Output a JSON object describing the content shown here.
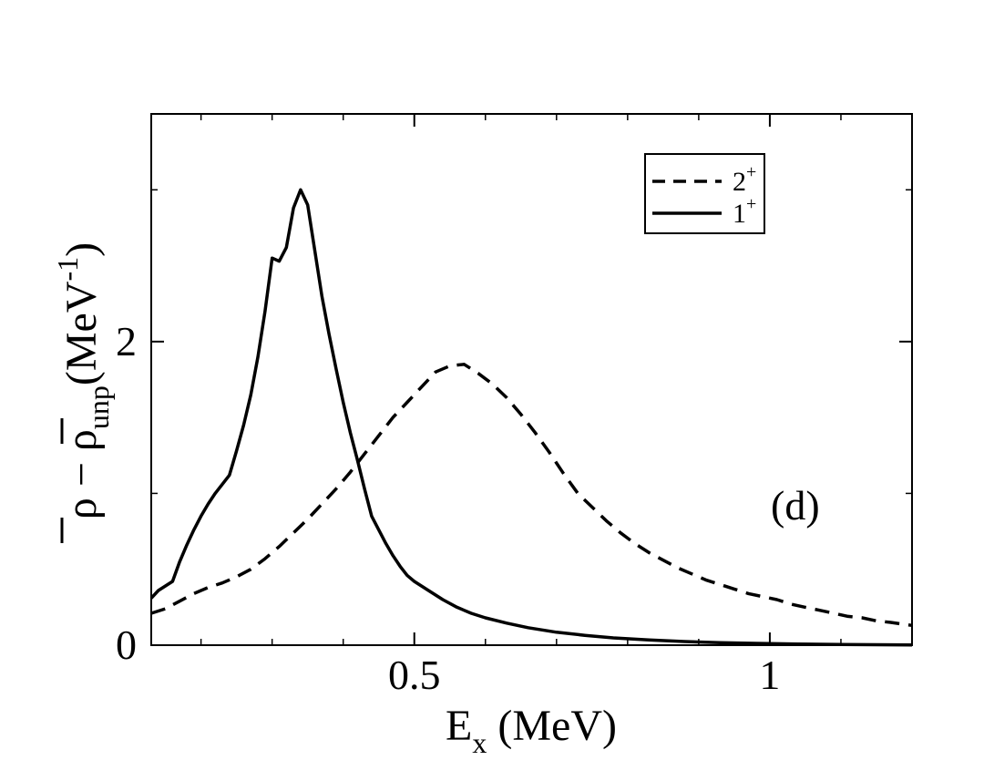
{
  "chart_data": {
    "type": "line",
    "title": "",
    "xlabel": {
      "base": "E",
      "sub": "x",
      "rest": " (MeV)"
    },
    "ylabel": {
      "part1": "ρ − ρ",
      "sub": "unp",
      "part2": "(MeV",
      "sup": "-1",
      "part3": ")"
    },
    "xlim": [
      0.13,
      1.2
    ],
    "ylim": [
      0,
      3.5
    ],
    "xticks": [
      {
        "v": 0.5,
        "label": "0.5"
      },
      {
        "v": 1.0,
        "label": "1"
      }
    ],
    "yticks": [
      {
        "v": 0,
        "label": "0"
      },
      {
        "v": 2,
        "label": "2"
      }
    ],
    "x_minor_ticks": [
      0.2,
      0.3,
      0.4,
      0.6,
      0.7,
      0.8,
      0.9,
      1.1
    ],
    "y_minor_ticks": [
      1,
      3
    ],
    "legend_position": "top-right",
    "annotation": "(d)",
    "series": [
      {
        "name": "2",
        "name_sup": "+",
        "style": "dashed",
        "color": "#000000",
        "points": [
          [
            0.13,
            0.21
          ],
          [
            0.15,
            0.24
          ],
          [
            0.17,
            0.29
          ],
          [
            0.19,
            0.34
          ],
          [
            0.21,
            0.38
          ],
          [
            0.23,
            0.41
          ],
          [
            0.25,
            0.45
          ],
          [
            0.27,
            0.5
          ],
          [
            0.29,
            0.57
          ],
          [
            0.31,
            0.65
          ],
          [
            0.33,
            0.74
          ],
          [
            0.35,
            0.83
          ],
          [
            0.37,
            0.93
          ],
          [
            0.39,
            1.03
          ],
          [
            0.41,
            1.14
          ],
          [
            0.43,
            1.26
          ],
          [
            0.45,
            1.38
          ],
          [
            0.47,
            1.5
          ],
          [
            0.49,
            1.6
          ],
          [
            0.51,
            1.7
          ],
          [
            0.53,
            1.8
          ],
          [
            0.55,
            1.84
          ],
          [
            0.57,
            1.85
          ],
          [
            0.59,
            1.79
          ],
          [
            0.61,
            1.72
          ],
          [
            0.63,
            1.63
          ],
          [
            0.65,
            1.52
          ],
          [
            0.67,
            1.4
          ],
          [
            0.69,
            1.27
          ],
          [
            0.71,
            1.13
          ],
          [
            0.73,
            1.0
          ],
          [
            0.75,
            0.91
          ],
          [
            0.77,
            0.82
          ],
          [
            0.79,
            0.74
          ],
          [
            0.81,
            0.67
          ],
          [
            0.83,
            0.61
          ],
          [
            0.85,
            0.56
          ],
          [
            0.87,
            0.51
          ],
          [
            0.89,
            0.47
          ],
          [
            0.91,
            0.43
          ],
          [
            0.93,
            0.4
          ],
          [
            0.95,
            0.37
          ],
          [
            0.97,
            0.34
          ],
          [
            0.99,
            0.32
          ],
          [
            1.01,
            0.3
          ],
          [
            1.03,
            0.27
          ],
          [
            1.05,
            0.25
          ],
          [
            1.07,
            0.23
          ],
          [
            1.09,
            0.21
          ],
          [
            1.11,
            0.19
          ],
          [
            1.13,
            0.18
          ],
          [
            1.15,
            0.16
          ],
          [
            1.17,
            0.15
          ],
          [
            1.2,
            0.13
          ]
        ]
      },
      {
        "name": "1",
        "name_sup": "+",
        "style": "solid",
        "color": "#000000",
        "points": [
          [
            0.13,
            0.31
          ],
          [
            0.14,
            0.36
          ],
          [
            0.16,
            0.42
          ],
          [
            0.17,
            0.55
          ],
          [
            0.18,
            0.66
          ],
          [
            0.19,
            0.76
          ],
          [
            0.2,
            0.85
          ],
          [
            0.21,
            0.93
          ],
          [
            0.22,
            1.0
          ],
          [
            0.23,
            1.06
          ],
          [
            0.24,
            1.12
          ],
          [
            0.25,
            1.28
          ],
          [
            0.26,
            1.45
          ],
          [
            0.27,
            1.65
          ],
          [
            0.28,
            1.9
          ],
          [
            0.29,
            2.2
          ],
          [
            0.3,
            2.55
          ],
          [
            0.31,
            2.53
          ],
          [
            0.32,
            2.62
          ],
          [
            0.33,
            2.88
          ],
          [
            0.34,
            3.0
          ],
          [
            0.35,
            2.9
          ],
          [
            0.36,
            2.6
          ],
          [
            0.37,
            2.3
          ],
          [
            0.38,
            2.05
          ],
          [
            0.39,
            1.82
          ],
          [
            0.4,
            1.6
          ],
          [
            0.41,
            1.4
          ],
          [
            0.42,
            1.22
          ],
          [
            0.43,
            1.03
          ],
          [
            0.44,
            0.85
          ],
          [
            0.45,
            0.76
          ],
          [
            0.46,
            0.67
          ],
          [
            0.47,
            0.59
          ],
          [
            0.48,
            0.52
          ],
          [
            0.49,
            0.46
          ],
          [
            0.5,
            0.42
          ],
          [
            0.52,
            0.36
          ],
          [
            0.54,
            0.3
          ],
          [
            0.56,
            0.25
          ],
          [
            0.58,
            0.21
          ],
          [
            0.6,
            0.18
          ],
          [
            0.63,
            0.145
          ],
          [
            0.66,
            0.115
          ],
          [
            0.7,
            0.085
          ],
          [
            0.74,
            0.065
          ],
          [
            0.78,
            0.048
          ],
          [
            0.83,
            0.034
          ],
          [
            0.88,
            0.024
          ],
          [
            0.93,
            0.017
          ],
          [
            0.98,
            0.012
          ],
          [
            1.04,
            0.008
          ],
          [
            1.1,
            0.005
          ],
          [
            1.15,
            0.003
          ],
          [
            1.2,
            0.002
          ]
        ]
      }
    ]
  }
}
